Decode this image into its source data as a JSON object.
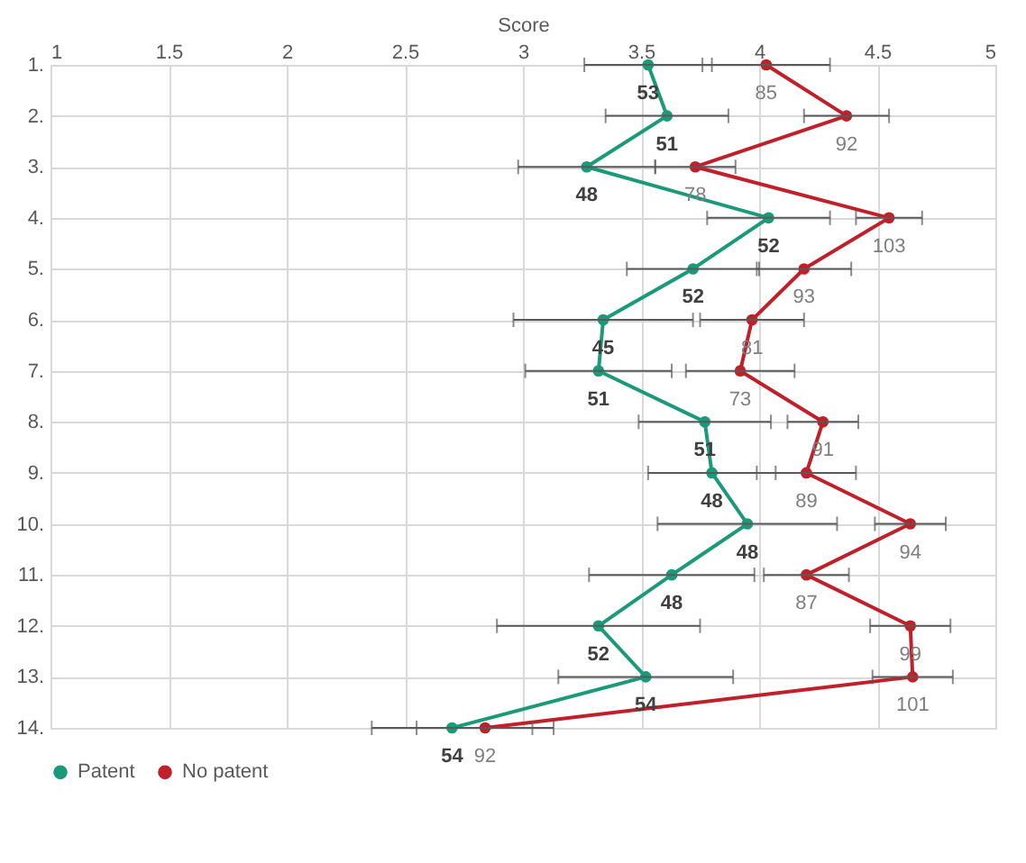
{
  "chart_data": {
    "type": "line",
    "orientation": "horizontal",
    "xlabel": "Score",
    "categories": [
      "1.",
      "2.",
      "3.",
      "4.",
      "5.",
      "6.",
      "7.",
      "8.",
      "9.",
      "10.",
      "11.",
      "12.",
      "13.",
      "14."
    ],
    "xlim": [
      1,
      5
    ],
    "xticks": [
      1,
      1.5,
      2,
      2.5,
      3,
      3.5,
      4,
      4.5,
      5
    ],
    "grid": true,
    "legend": "bottom",
    "marker": "circle",
    "line_style": "solid",
    "series": [
      {
        "name": "Patent",
        "color": "#1a9a78",
        "values": [
          3.53,
          3.61,
          3.27,
          4.04,
          3.72,
          3.34,
          3.32,
          3.77,
          3.8,
          3.95,
          3.63,
          3.32,
          3.52,
          2.7
        ],
        "errors": [
          0.27,
          0.26,
          0.29,
          0.26,
          0.28,
          0.38,
          0.31,
          0.28,
          0.27,
          0.38,
          0.35,
          0.43,
          0.37,
          0.34
        ]
      },
      {
        "name": "No patent",
        "color": "#c0202a",
        "values": [
          4.03,
          4.37,
          3.73,
          4.55,
          4.19,
          3.97,
          3.92,
          4.27,
          4.2,
          4.64,
          4.2,
          4.64,
          4.65,
          2.84
        ],
        "errors": [
          0.27,
          0.18,
          0.17,
          0.14,
          0.2,
          0.22,
          0.23,
          0.15,
          0.21,
          0.15,
          0.18,
          0.17,
          0.17,
          0.29
        ]
      }
    ],
    "annotations": [
      {
        "text": "53",
        "x": 3.53,
        "y": "1."
      },
      {
        "text": "51",
        "x": 3.61,
        "y": "2."
      },
      {
        "text": "48",
        "x": 3.27,
        "y": "3."
      },
      {
        "text": "52",
        "x": 4.04,
        "y": "4."
      },
      {
        "text": "52",
        "x": 3.72,
        "y": "5."
      },
      {
        "text": "45",
        "x": 3.34,
        "y": "6."
      },
      {
        "text": "51",
        "x": 3.32,
        "y": "7."
      },
      {
        "text": "51",
        "x": 3.77,
        "y": "8."
      },
      {
        "text": "48",
        "x": 3.8,
        "y": "9."
      },
      {
        "text": "48",
        "x": 3.95,
        "y": "10."
      },
      {
        "text": "48",
        "x": 3.63,
        "y": "11."
      },
      {
        "text": "52",
        "x": 3.32,
        "y": "12."
      },
      {
        "text": "54",
        "x": 3.52,
        "y": "13."
      },
      {
        "text": "54",
        "x": 2.7,
        "y": "14."
      },
      {
        "text": "85",
        "x": 4.03,
        "y": "1."
      },
      {
        "text": "92",
        "x": 4.37,
        "y": "2."
      },
      {
        "text": "78",
        "x": 3.73,
        "y": "3."
      },
      {
        "text": "103",
        "x": 4.55,
        "y": "4."
      },
      {
        "text": "93",
        "x": 4.19,
        "y": "5."
      },
      {
        "text": "81",
        "x": 3.97,
        "y": "6."
      },
      {
        "text": "73",
        "x": 3.92,
        "y": "7."
      },
      {
        "text": "91",
        "x": 4.27,
        "y": "8."
      },
      {
        "text": "89",
        "x": 4.2,
        "y": "9."
      },
      {
        "text": "94",
        "x": 4.64,
        "y": "10."
      },
      {
        "text": "87",
        "x": 4.2,
        "y": "11."
      },
      {
        "text": "99",
        "x": 4.64,
        "y": "12."
      },
      {
        "text": "101",
        "x": 4.65,
        "y": "13."
      },
      {
        "text": "92",
        "x": 2.84,
        "y": "14."
      }
    ]
  }
}
